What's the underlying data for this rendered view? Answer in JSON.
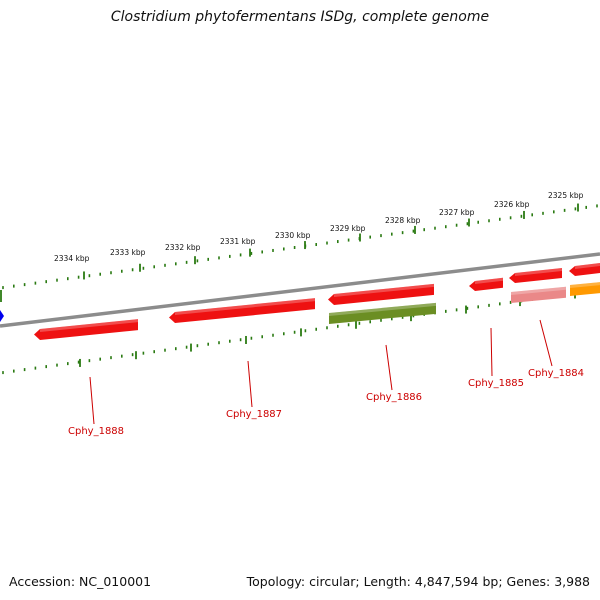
{
  "title": "Clostridium phytofermentans ISDg, complete genome",
  "footer": {
    "accession": "Accession: NC_010001",
    "summary": "Topology: circular; Length: 4,847,594 bp; Genes: 3,988"
  },
  "colors": {
    "backbone": "#8c8c8c",
    "tick": "#2a7a12",
    "gene_red": "#ee1111",
    "gene_olive": "#6b8e23",
    "gene_pink": "#ea8888",
    "gene_orange": "#ff9900",
    "label": "#cc0000",
    "marker": "#0000ee"
  },
  "scale_labels": [
    "2334 kbp",
    "2333 kbp",
    "2332 kbp",
    "2331 kbp",
    "2330 kbp",
    "2329 kbp",
    "2328 kbp",
    "2327 kbp",
    "2326 kbp",
    "2325 kbp"
  ],
  "gene_labels": [
    "Cphy_1888",
    "Cphy_1887",
    "Cphy_1886",
    "Cphy_1885",
    "Cphy_1884"
  ]
}
